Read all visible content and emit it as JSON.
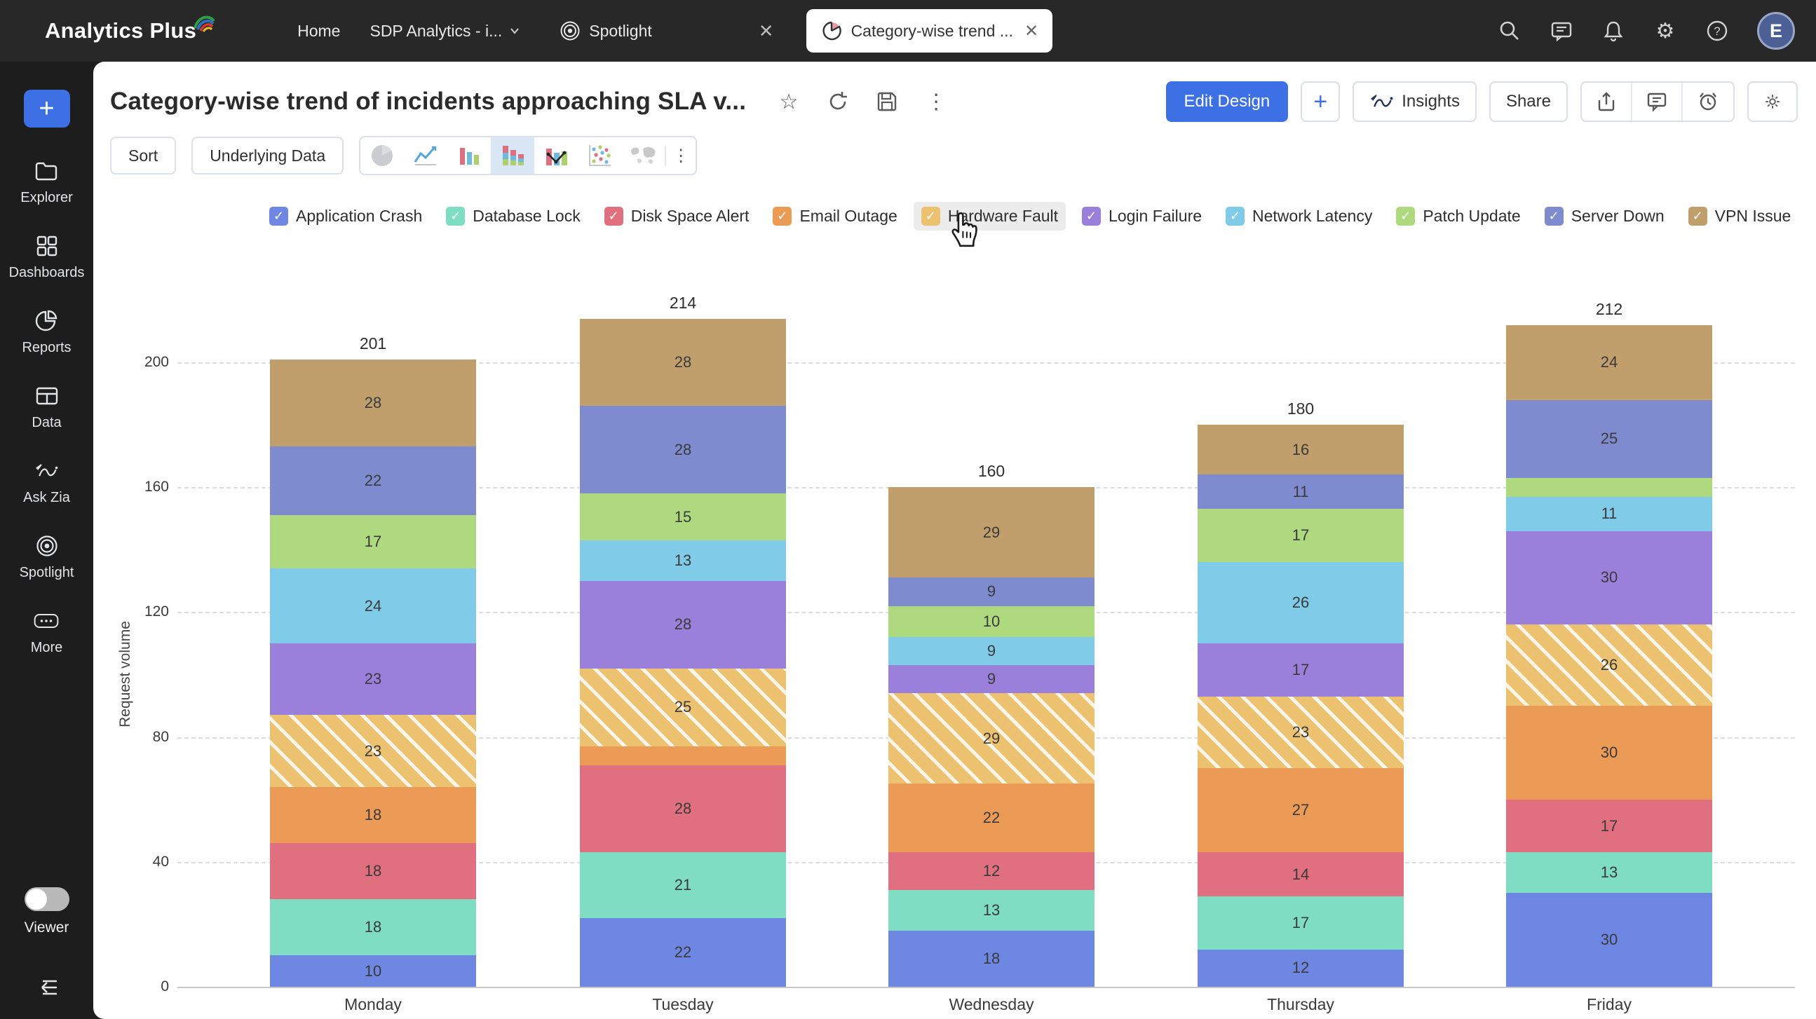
{
  "topbar": {
    "logo": "Analytics Plus",
    "nav_home": "Home",
    "nav_workspace": "SDP Analytics - i...",
    "nav_spotlight": "Spotlight",
    "active_tab": "Category-wise trend ...",
    "avatar_initial": "E"
  },
  "sidebar": {
    "items": [
      {
        "label": "Explorer"
      },
      {
        "label": "Dashboards"
      },
      {
        "label": "Reports"
      },
      {
        "label": "Data"
      },
      {
        "label": "Ask Zia"
      },
      {
        "label": "Spotlight"
      },
      {
        "label": "More"
      }
    ],
    "viewer_label": "Viewer"
  },
  "header": {
    "title": "Category-wise trend of incidents approaching SLA v...",
    "edit_design": "Edit Design",
    "insights": "Insights",
    "share": "Share"
  },
  "toolbar": {
    "sort": "Sort",
    "underlying_data": "Underlying Data"
  },
  "icons": {
    "star": "☆",
    "kebab": "⋮",
    "plus": "+",
    "close": "✕",
    "check": "✓",
    "gear": "⚙",
    "question": "?",
    "ellipsis": "• • •"
  },
  "colors": {
    "accent": "#3d70e4",
    "topbar_bg": "#282828",
    "sidebar_bg": "#1d1d1d",
    "selected_charttype_bg": "#d8e6f6",
    "legend_hover_bg": "#ececec"
  },
  "chart_data": {
    "type": "bar",
    "stacked": true,
    "title": "Category-wise trend of incidents approaching SLA v...",
    "categories": [
      "Monday",
      "Tuesday",
      "Wednesday",
      "Thursday",
      "Friday"
    ],
    "series": [
      {
        "name": "Application Crash",
        "color": "#6d87e3",
        "values": [
          10,
          22,
          18,
          12,
          30
        ]
      },
      {
        "name": "Database Lock",
        "color": "#7eddc3",
        "values": [
          18,
          21,
          13,
          17,
          13
        ]
      },
      {
        "name": "Disk Space Alert",
        "color": "#e0707f",
        "values": [
          18,
          28,
          12,
          14,
          17
        ]
      },
      {
        "name": "Email Outage",
        "color": "#eb9b55",
        "values": [
          18,
          6,
          22,
          27,
          30
        ]
      },
      {
        "name": "Hardware Fault",
        "color": "#ecc170",
        "hatched": true,
        "values": [
          23,
          25,
          29,
          23,
          26
        ]
      },
      {
        "name": "Login Failure",
        "color": "#9a7fdb",
        "values": [
          23,
          28,
          9,
          17,
          30
        ]
      },
      {
        "name": "Network Latency",
        "color": "#7fcbe8",
        "values": [
          24,
          13,
          9,
          26,
          11
        ]
      },
      {
        "name": "Patch Update",
        "color": "#aed97f",
        "values": [
          17,
          15,
          10,
          17,
          6
        ]
      },
      {
        "name": "Server Down",
        "color": "#7e8bce",
        "values": [
          22,
          28,
          9,
          11,
          25
        ]
      },
      {
        "name": "VPN Issue",
        "color": "#c09f6d",
        "values": [
          28,
          28,
          29,
          16,
          24
        ]
      }
    ],
    "totals": [
      201,
      214,
      160,
      180,
      212
    ],
    "ylabel": "Request volume",
    "yticks": [
      0,
      40,
      80,
      120,
      160,
      200
    ],
    "ylim": [
      0,
      220
    ],
    "grid": "horizontal-dashed",
    "legend_position": "top",
    "legend_all_checked": true,
    "hovered_legend": "Hardware Fault"
  }
}
